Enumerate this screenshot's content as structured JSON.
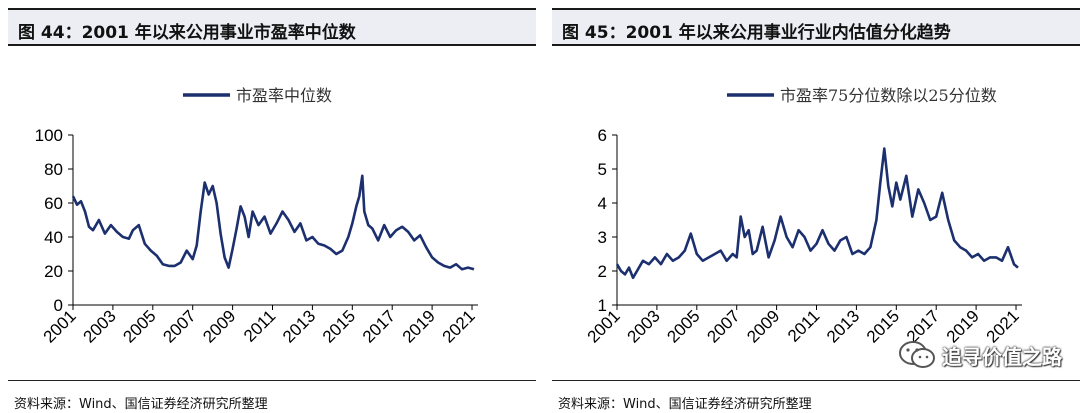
{
  "panels": [
    {
      "title": "图 44：2001 年以来公用事业市盈率中位数",
      "source": "资料来源：Wind、国信证券经济研究所整理"
    },
    {
      "title": "图 45：2001 年以来公用事业行业内估值分化趋势",
      "source": "资料来源：Wind、国信证券经济研究所整理"
    }
  ],
  "watermark": {
    "text": "追寻价值之路",
    "icon": "wechat-icon"
  },
  "colors": {
    "line": "#1c2f6e",
    "title_bg": "#eceef3",
    "rule": "#1a1a1a"
  },
  "chart_data": [
    {
      "type": "line",
      "title": "",
      "legend": {
        "position": "top-center"
      },
      "xlabel": "",
      "ylabel": "",
      "xlim": [
        2001,
        2021.3
      ],
      "ylim": [
        0,
        100
      ],
      "yticks": [
        0,
        20,
        40,
        60,
        80,
        100
      ],
      "xticks": [
        "2001",
        "2003",
        "2005",
        "2007",
        "2009",
        "2011",
        "2013",
        "2015",
        "2017",
        "2019",
        "2021"
      ],
      "grid": false,
      "series": [
        {
          "name": "市盈率中位数",
          "color": "#1c2f6e",
          "x": [
            2001.0,
            2001.2,
            2001.4,
            2001.6,
            2001.8,
            2002.0,
            2002.3,
            2002.6,
            2002.9,
            2003.2,
            2003.5,
            2003.8,
            2004.0,
            2004.3,
            2004.6,
            2004.9,
            2005.2,
            2005.5,
            2005.8,
            2006.1,
            2006.4,
            2006.7,
            2007.0,
            2007.2,
            2007.4,
            2007.6,
            2007.8,
            2008.0,
            2008.2,
            2008.4,
            2008.6,
            2008.8,
            2009.0,
            2009.2,
            2009.4,
            2009.6,
            2009.8,
            2010.0,
            2010.3,
            2010.6,
            2010.9,
            2011.2,
            2011.5,
            2011.8,
            2012.1,
            2012.4,
            2012.7,
            2013.0,
            2013.3,
            2013.6,
            2013.9,
            2014.2,
            2014.5,
            2014.8,
            2015.0,
            2015.2,
            2015.35,
            2015.5,
            2015.6,
            2015.8,
            2016.0,
            2016.3,
            2016.6,
            2016.9,
            2017.2,
            2017.5,
            2017.8,
            2018.1,
            2018.4,
            2018.7,
            2019.0,
            2019.3,
            2019.6,
            2019.9,
            2020.2,
            2020.5,
            2020.8,
            2021.1
          ],
          "values": [
            64,
            59,
            61,
            55,
            46,
            44,
            50,
            42,
            47,
            43,
            40,
            39,
            44,
            47,
            36,
            32,
            29,
            24,
            23,
            23,
            25,
            32,
            27,
            35,
            55,
            72,
            65,
            70,
            60,
            42,
            28,
            22,
            33,
            45,
            58,
            52,
            40,
            55,
            47,
            52,
            42,
            48,
            55,
            50,
            43,
            48,
            38,
            40,
            36,
            35,
            33,
            30,
            32,
            40,
            48,
            58,
            64,
            76,
            55,
            47,
            45,
            38,
            47,
            40,
            44,
            46,
            43,
            38,
            41,
            34,
            28,
            25,
            23,
            22,
            24,
            21,
            22,
            21
          ]
        }
      ]
    },
    {
      "type": "line",
      "title": "",
      "legend": {
        "position": "top-center"
      },
      "xlabel": "",
      "ylabel": "",
      "xlim": [
        2001,
        2021.3
      ],
      "ylim": [
        1,
        6
      ],
      "yticks": [
        1,
        2,
        3,
        4,
        5,
        6
      ],
      "xticks": [
        "2001",
        "2003",
        "2005",
        "2007",
        "2009",
        "2011",
        "2013",
        "2015",
        "2017",
        "2019",
        "2021"
      ],
      "grid": false,
      "series": [
        {
          "name": "市盈率75分位数除以25分位数",
          "color": "#1c2f6e",
          "x": [
            2001.0,
            2001.2,
            2001.4,
            2001.6,
            2001.8,
            2002.0,
            2002.3,
            2002.6,
            2002.9,
            2003.2,
            2003.5,
            2003.8,
            2004.1,
            2004.4,
            2004.7,
            2005.0,
            2005.3,
            2005.6,
            2005.9,
            2006.2,
            2006.5,
            2006.8,
            2007.0,
            2007.2,
            2007.4,
            2007.6,
            2007.8,
            2008.0,
            2008.3,
            2008.6,
            2008.9,
            2009.2,
            2009.5,
            2009.8,
            2010.1,
            2010.4,
            2010.7,
            2011.0,
            2011.3,
            2011.6,
            2011.9,
            2012.2,
            2012.5,
            2012.8,
            2013.1,
            2013.4,
            2013.7,
            2014.0,
            2014.2,
            2014.4,
            2014.6,
            2014.8,
            2015.0,
            2015.2,
            2015.5,
            2015.8,
            2016.1,
            2016.4,
            2016.7,
            2017.0,
            2017.3,
            2017.6,
            2017.9,
            2018.2,
            2018.5,
            2018.8,
            2019.1,
            2019.4,
            2019.7,
            2020.0,
            2020.3,
            2020.6,
            2020.9,
            2021.1
          ],
          "values": [
            2.2,
            2.0,
            1.9,
            2.1,
            1.8,
            2.0,
            2.3,
            2.2,
            2.4,
            2.2,
            2.5,
            2.3,
            2.4,
            2.6,
            3.1,
            2.5,
            2.3,
            2.4,
            2.5,
            2.6,
            2.3,
            2.5,
            2.4,
            3.6,
            3.0,
            3.2,
            2.5,
            2.6,
            3.3,
            2.4,
            2.9,
            3.6,
            3.0,
            2.7,
            3.2,
            3.0,
            2.6,
            2.8,
            3.2,
            2.8,
            2.6,
            2.9,
            3.0,
            2.5,
            2.6,
            2.5,
            2.7,
            3.5,
            4.6,
            5.6,
            4.5,
            3.9,
            4.6,
            4.1,
            4.8,
            3.6,
            4.4,
            4.0,
            3.5,
            3.6,
            4.3,
            3.5,
            2.9,
            2.7,
            2.6,
            2.4,
            2.5,
            2.3,
            2.4,
            2.4,
            2.3,
            2.7,
            2.2,
            2.1
          ]
        }
      ]
    }
  ]
}
